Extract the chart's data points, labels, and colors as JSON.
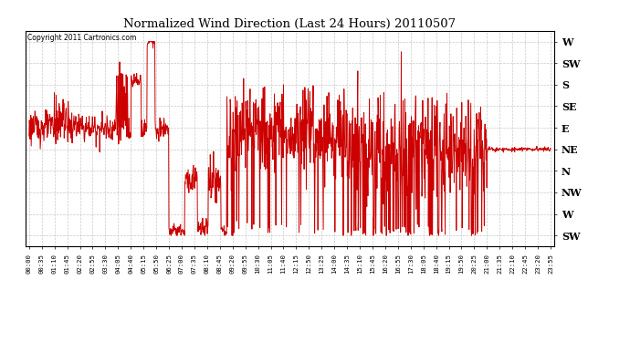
{
  "title": "Normalized Wind Direction (Last 24 Hours) 20110507",
  "copyright_text": "Copyright 2011 Cartronics.com",
  "y_tick_labels": [
    "SW",
    "W",
    "NW",
    "N",
    "NE",
    "E",
    "SE",
    "S",
    "SW",
    "W"
  ],
  "y_tick_values": [
    0,
    1,
    2,
    3,
    4,
    5,
    6,
    7,
    8,
    9
  ],
  "ylim": [
    -0.5,
    9.5
  ],
  "line_color": "#cc0000",
  "background_color": "#ffffff",
  "grid_color": "#bbbbbb",
  "x_tick_labels": [
    "00:00",
    "00:35",
    "01:10",
    "01:45",
    "02:20",
    "02:55",
    "03:30",
    "04:05",
    "04:40",
    "05:15",
    "05:50",
    "06:25",
    "07:00",
    "07:35",
    "08:10",
    "08:45",
    "09:20",
    "09:55",
    "10:30",
    "11:05",
    "11:40",
    "12:15",
    "12:50",
    "13:25",
    "14:00",
    "14:35",
    "15:10",
    "15:45",
    "16:20",
    "16:55",
    "17:30",
    "18:05",
    "18:40",
    "19:15",
    "19:50",
    "20:25",
    "21:00",
    "21:35",
    "22:10",
    "22:45",
    "23:20",
    "23:55"
  ],
  "figsize": [
    6.9,
    3.75
  ],
  "dpi": 100
}
